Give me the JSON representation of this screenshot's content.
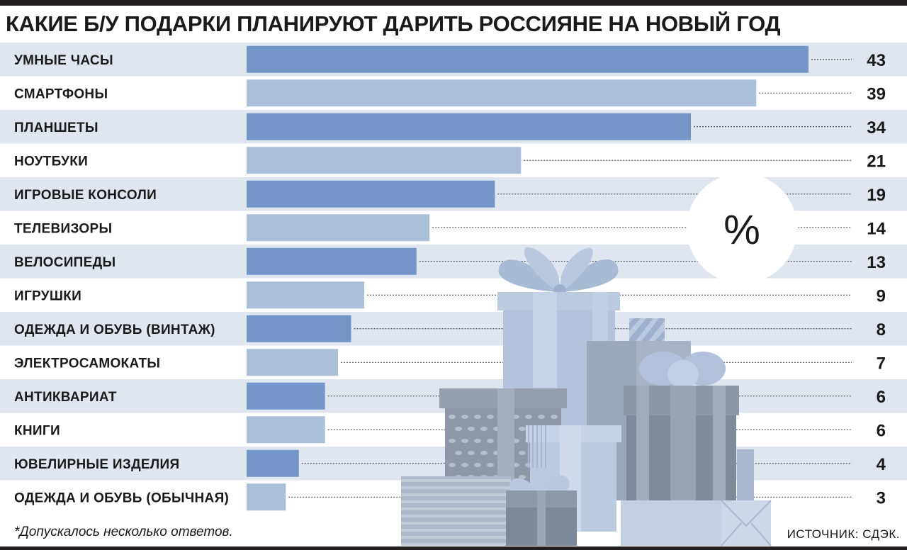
{
  "title": "КАКИЕ Б/У ПОДАРКИ ПЛАНИРУЮТ ДАРИТЬ РОССИЯНЕ НА НОВЫЙ ГОД",
  "unit": "%",
  "footnote": "*Допускалось несколько ответов.",
  "source": "ИСТОЧНИК: СДЭК.",
  "colors": {
    "bar_dark": "#7395c8",
    "bar_light": "#abbfd8",
    "stripe": "#e0e6f0",
    "gift_light": "#b9c8de",
    "gift_mid": "#a3b3c8",
    "gift_dark": "#8894a6"
  },
  "chart_data": {
    "type": "bar",
    "orientation": "horizontal",
    "categories": [
      "УМНЫЕ ЧАСЫ",
      "СМАРТФОНЫ",
      "ПЛАНШЕТЫ",
      "НОУТБУКИ",
      "ИГРОВЫЕ КОНСОЛИ",
      "ТЕЛЕВИЗОРЫ",
      "ВЕЛОСИПЕДЫ",
      "ИГРУШКИ",
      "ОДЕЖДА И ОБУВЬ (ВИНТАЖ)",
      "ЭЛЕКТРОСАМОКАТЫ",
      "АНТИКВАРИАТ",
      "КНИГИ",
      "ЮВЕЛИРНЫЕ ИЗДЕЛИЯ",
      "ОДЕЖДА И ОБУВЬ (ОБЫЧНАЯ)"
    ],
    "values": [
      43,
      39,
      34,
      21,
      19,
      14,
      13,
      9,
      8,
      7,
      6,
      6,
      4,
      3
    ],
    "xlim": [
      0,
      43
    ]
  }
}
